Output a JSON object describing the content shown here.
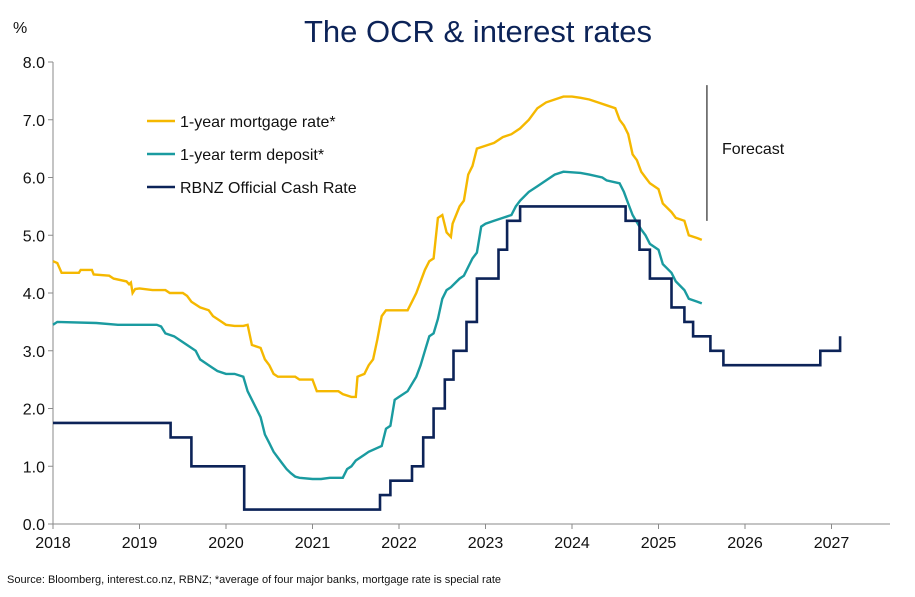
{
  "chart_data": {
    "type": "line",
    "title": "The OCR & interest rates",
    "ylabel": "%",
    "xlabel": "",
    "ylim": [
      0,
      8
    ],
    "xlim": [
      2018,
      2027.6
    ],
    "yticks": [
      "0.0",
      "1.0",
      "2.0",
      "3.0",
      "4.0",
      "5.0",
      "6.0",
      "7.0",
      "8.0"
    ],
    "xticks": [
      "2018",
      "2019",
      "2020",
      "2021",
      "2022",
      "2023",
      "2024",
      "2025",
      "2026",
      "2027"
    ],
    "grid": false,
    "legend": "top-left",
    "annotation": "Forecast",
    "forecast_start": 2025.56,
    "series": [
      {
        "name": "1-year mortgage rate*",
        "color": "#f5b800",
        "step": false,
        "points": [
          [
            2018.0,
            4.55
          ],
          [
            2018.05,
            4.52
          ],
          [
            2018.1,
            4.35
          ],
          [
            2018.3,
            4.35
          ],
          [
            2018.32,
            4.4
          ],
          [
            2018.45,
            4.4
          ],
          [
            2018.47,
            4.32
          ],
          [
            2018.65,
            4.3
          ],
          [
            2018.7,
            4.25
          ],
          [
            2018.85,
            4.2
          ],
          [
            2018.88,
            4.15
          ],
          [
            2018.9,
            4.18
          ],
          [
            2018.92,
            4.0
          ],
          [
            2018.95,
            4.07
          ],
          [
            2019.0,
            4.08
          ],
          [
            2019.15,
            4.05
          ],
          [
            2019.3,
            4.05
          ],
          [
            2019.35,
            4.0
          ],
          [
            2019.5,
            4.0
          ],
          [
            2019.55,
            3.95
          ],
          [
            2019.6,
            3.85
          ],
          [
            2019.7,
            3.75
          ],
          [
            2019.8,
            3.7
          ],
          [
            2019.85,
            3.6
          ],
          [
            2019.9,
            3.55
          ],
          [
            2019.95,
            3.5
          ],
          [
            2020.0,
            3.45
          ],
          [
            2020.1,
            3.43
          ],
          [
            2020.2,
            3.43
          ],
          [
            2020.25,
            3.45
          ],
          [
            2020.3,
            3.1
          ],
          [
            2020.4,
            3.05
          ],
          [
            2020.45,
            2.85
          ],
          [
            2020.5,
            2.75
          ],
          [
            2020.55,
            2.6
          ],
          [
            2020.6,
            2.55
          ],
          [
            2020.8,
            2.55
          ],
          [
            2020.85,
            2.5
          ],
          [
            2021.0,
            2.5
          ],
          [
            2021.05,
            2.3
          ],
          [
            2021.3,
            2.3
          ],
          [
            2021.35,
            2.25
          ],
          [
            2021.45,
            2.2
          ],
          [
            2021.5,
            2.2
          ],
          [
            2021.52,
            2.55
          ],
          [
            2021.6,
            2.6
          ],
          [
            2021.65,
            2.75
          ],
          [
            2021.7,
            2.85
          ],
          [
            2021.75,
            3.2
          ],
          [
            2021.8,
            3.6
          ],
          [
            2021.85,
            3.7
          ],
          [
            2022.1,
            3.7
          ],
          [
            2022.15,
            3.85
          ],
          [
            2022.2,
            4.0
          ],
          [
            2022.25,
            4.2
          ],
          [
            2022.3,
            4.4
          ],
          [
            2022.35,
            4.55
          ],
          [
            2022.4,
            4.6
          ],
          [
            2022.45,
            5.3
          ],
          [
            2022.5,
            5.35
          ],
          [
            2022.55,
            5.05
          ],
          [
            2022.6,
            4.97
          ],
          [
            2022.62,
            5.2
          ],
          [
            2022.7,
            5.5
          ],
          [
            2022.75,
            5.6
          ],
          [
            2022.8,
            6.05
          ],
          [
            2022.85,
            6.2
          ],
          [
            2022.9,
            6.5
          ],
          [
            2023.0,
            6.55
          ],
          [
            2023.1,
            6.6
          ],
          [
            2023.2,
            6.7
          ],
          [
            2023.3,
            6.75
          ],
          [
            2023.4,
            6.85
          ],
          [
            2023.5,
            7.0
          ],
          [
            2023.6,
            7.2
          ],
          [
            2023.7,
            7.3
          ],
          [
            2023.8,
            7.35
          ],
          [
            2023.9,
            7.4
          ],
          [
            2024.0,
            7.4
          ],
          [
            2024.1,
            7.38
          ],
          [
            2024.2,
            7.35
          ],
          [
            2024.3,
            7.3
          ],
          [
            2024.4,
            7.25
          ],
          [
            2024.5,
            7.2
          ],
          [
            2024.55,
            7.0
          ],
          [
            2024.6,
            6.9
          ],
          [
            2024.65,
            6.75
          ],
          [
            2024.7,
            6.4
          ],
          [
            2024.75,
            6.3
          ],
          [
            2024.8,
            6.1
          ],
          [
            2024.85,
            6.0
          ],
          [
            2024.9,
            5.9
          ],
          [
            2025.0,
            5.8
          ],
          [
            2025.05,
            5.55
          ],
          [
            2025.15,
            5.4
          ],
          [
            2025.2,
            5.3
          ],
          [
            2025.3,
            5.25
          ],
          [
            2025.35,
            5.0
          ],
          [
            2025.45,
            4.95
          ],
          [
            2025.5,
            4.92
          ]
        ]
      },
      {
        "name": "1-year term deposit*",
        "color": "#1a9ba0",
        "step": false,
        "points": [
          [
            2018.0,
            3.45
          ],
          [
            2018.05,
            3.5
          ],
          [
            2018.5,
            3.48
          ],
          [
            2018.75,
            3.45
          ],
          [
            2019.0,
            3.45
          ],
          [
            2019.2,
            3.45
          ],
          [
            2019.25,
            3.42
          ],
          [
            2019.3,
            3.3
          ],
          [
            2019.4,
            3.25
          ],
          [
            2019.5,
            3.15
          ],
          [
            2019.55,
            3.1
          ],
          [
            2019.65,
            3.0
          ],
          [
            2019.7,
            2.85
          ],
          [
            2019.8,
            2.75
          ],
          [
            2019.85,
            2.7
          ],
          [
            2019.9,
            2.65
          ],
          [
            2020.0,
            2.6
          ],
          [
            2020.1,
            2.6
          ],
          [
            2020.2,
            2.55
          ],
          [
            2020.25,
            2.3
          ],
          [
            2020.35,
            2.0
          ],
          [
            2020.4,
            1.85
          ],
          [
            2020.45,
            1.55
          ],
          [
            2020.5,
            1.4
          ],
          [
            2020.55,
            1.25
          ],
          [
            2020.6,
            1.15
          ],
          [
            2020.65,
            1.05
          ],
          [
            2020.7,
            0.95
          ],
          [
            2020.75,
            0.88
          ],
          [
            2020.8,
            0.82
          ],
          [
            2020.85,
            0.8
          ],
          [
            2021.0,
            0.78
          ],
          [
            2021.1,
            0.78
          ],
          [
            2021.2,
            0.8
          ],
          [
            2021.35,
            0.8
          ],
          [
            2021.4,
            0.95
          ],
          [
            2021.45,
            1.0
          ],
          [
            2021.5,
            1.1
          ],
          [
            2021.55,
            1.15
          ],
          [
            2021.6,
            1.2
          ],
          [
            2021.65,
            1.25
          ],
          [
            2021.8,
            1.35
          ],
          [
            2021.85,
            1.65
          ],
          [
            2021.9,
            1.7
          ],
          [
            2021.95,
            2.15
          ],
          [
            2022.0,
            2.2
          ],
          [
            2022.1,
            2.3
          ],
          [
            2022.2,
            2.55
          ],
          [
            2022.25,
            2.75
          ],
          [
            2022.3,
            3.0
          ],
          [
            2022.35,
            3.25
          ],
          [
            2022.4,
            3.3
          ],
          [
            2022.45,
            3.55
          ],
          [
            2022.5,
            3.9
          ],
          [
            2022.55,
            4.05
          ],
          [
            2022.6,
            4.1
          ],
          [
            2022.7,
            4.25
          ],
          [
            2022.75,
            4.3
          ],
          [
            2022.8,
            4.45
          ],
          [
            2022.85,
            4.6
          ],
          [
            2022.9,
            4.7
          ],
          [
            2022.95,
            5.15
          ],
          [
            2023.0,
            5.2
          ],
          [
            2023.1,
            5.25
          ],
          [
            2023.2,
            5.3
          ],
          [
            2023.3,
            5.35
          ],
          [
            2023.35,
            5.5
          ],
          [
            2023.4,
            5.6
          ],
          [
            2023.5,
            5.75
          ],
          [
            2023.6,
            5.85
          ],
          [
            2023.7,
            5.95
          ],
          [
            2023.8,
            6.05
          ],
          [
            2023.9,
            6.1
          ],
          [
            2024.1,
            6.08
          ],
          [
            2024.2,
            6.05
          ],
          [
            2024.35,
            6.0
          ],
          [
            2024.4,
            5.95
          ],
          [
            2024.55,
            5.9
          ],
          [
            2024.6,
            5.75
          ],
          [
            2024.65,
            5.55
          ],
          [
            2024.7,
            5.35
          ],
          [
            2024.8,
            5.1
          ],
          [
            2024.85,
            5.0
          ],
          [
            2024.9,
            4.85
          ],
          [
            2025.0,
            4.75
          ],
          [
            2025.05,
            4.5
          ],
          [
            2025.15,
            4.35
          ],
          [
            2025.2,
            4.2
          ],
          [
            2025.3,
            4.05
          ],
          [
            2025.35,
            3.9
          ],
          [
            2025.45,
            3.85
          ],
          [
            2025.5,
            3.82
          ]
        ]
      },
      {
        "name": "RBNZ Official Cash Rate",
        "color": "#0c2358",
        "step": true,
        "points": [
          [
            2018.0,
            1.75
          ],
          [
            2019.36,
            1.5
          ],
          [
            2019.6,
            1.0
          ],
          [
            2020.21,
            0.25
          ],
          [
            2021.78,
            0.5
          ],
          [
            2021.9,
            0.75
          ],
          [
            2022.15,
            1.0
          ],
          [
            2022.28,
            1.5
          ],
          [
            2022.4,
            2.0
          ],
          [
            2022.53,
            2.5
          ],
          [
            2022.63,
            3.0
          ],
          [
            2022.78,
            3.5
          ],
          [
            2022.9,
            4.25
          ],
          [
            2023.15,
            4.75
          ],
          [
            2023.25,
            5.25
          ],
          [
            2023.4,
            5.5
          ],
          [
            2024.62,
            5.25
          ],
          [
            2024.78,
            4.75
          ],
          [
            2024.9,
            4.25
          ],
          [
            2025.15,
            3.75
          ],
          [
            2025.3,
            3.5
          ],
          [
            2025.4,
            3.25
          ],
          [
            2025.6,
            3.0
          ],
          [
            2025.75,
            2.75
          ],
          [
            2026.87,
            3.0
          ],
          [
            2027.1,
            3.25
          ]
        ]
      }
    ],
    "source": "Source: Bloomberg, interest.co.nz, RBNZ; *average of four major banks, mortgage rate is special rate"
  }
}
